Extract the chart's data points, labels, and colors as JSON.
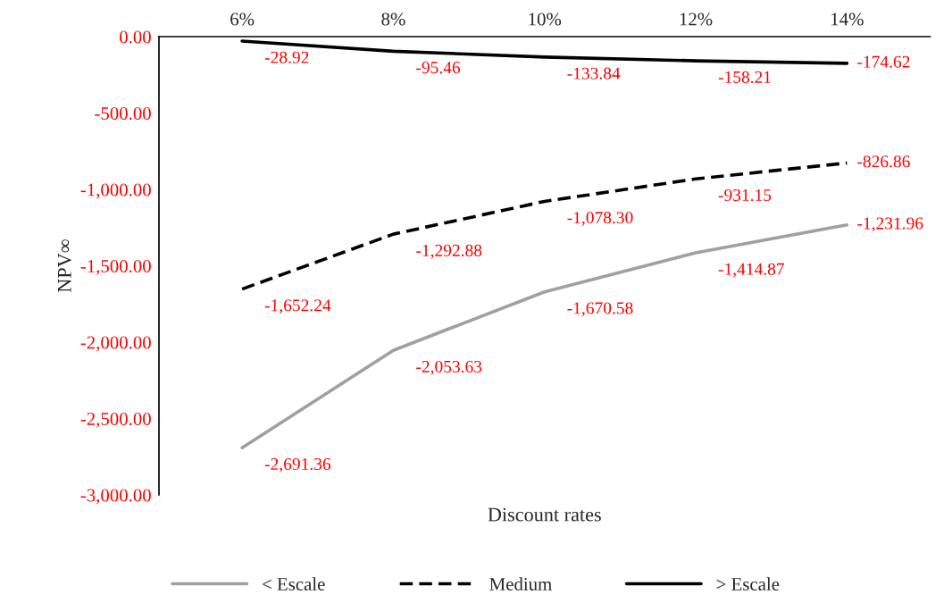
{
  "chart_data": {
    "type": "line",
    "xlabel": "Discount rates",
    "ylabel": "NPV∞",
    "categories": [
      "6%",
      "8%",
      "10%",
      "12%",
      "14%"
    ],
    "series": [
      {
        "name": "< Escale",
        "color": "#a0a0a0",
        "line_style": "solid",
        "values": [
          -2691.36,
          -2053.63,
          -1670.58,
          -1414.87,
          -1231.96
        ],
        "value_labels": [
          "-2,691.36",
          "-2,053.63",
          "-1,670.58",
          "-1,414.87",
          "-1,231.96"
        ]
      },
      {
        "name": "Medium",
        "color": "#000000",
        "line_style": "dashed",
        "values": [
          -1652.24,
          -1292.88,
          -1078.3,
          -931.15,
          -826.86
        ],
        "value_labels": [
          "-1,652.24",
          "-1,292.88",
          "-1,078.30",
          "-931.15",
          "-826.86"
        ]
      },
      {
        "name": "> Escale",
        "color": "#000000",
        "line_style": "solid",
        "values": [
          -28.92,
          -95.46,
          -133.84,
          -158.21,
          -174.62
        ],
        "value_labels": [
          "-28.92",
          "-95.46",
          "-133.84",
          "-158.21",
          "-174.62"
        ]
      }
    ],
    "ylim": [
      -3000,
      0
    ],
    "yticks": [
      {
        "value": 0,
        "label": "0.00"
      },
      {
        "value": -500,
        "label": "-500.00"
      },
      {
        "value": -1000,
        "label": "-1,000.00"
      },
      {
        "value": -1500,
        "label": "-1,500.00"
      },
      {
        "value": -2000,
        "label": "-2,000.00"
      },
      {
        "value": -2500,
        "label": "-2,500.00"
      },
      {
        "value": -3000,
        "label": "-3,000.00"
      }
    ],
    "grid": false,
    "legend": "bottom",
    "marker": "none"
  }
}
